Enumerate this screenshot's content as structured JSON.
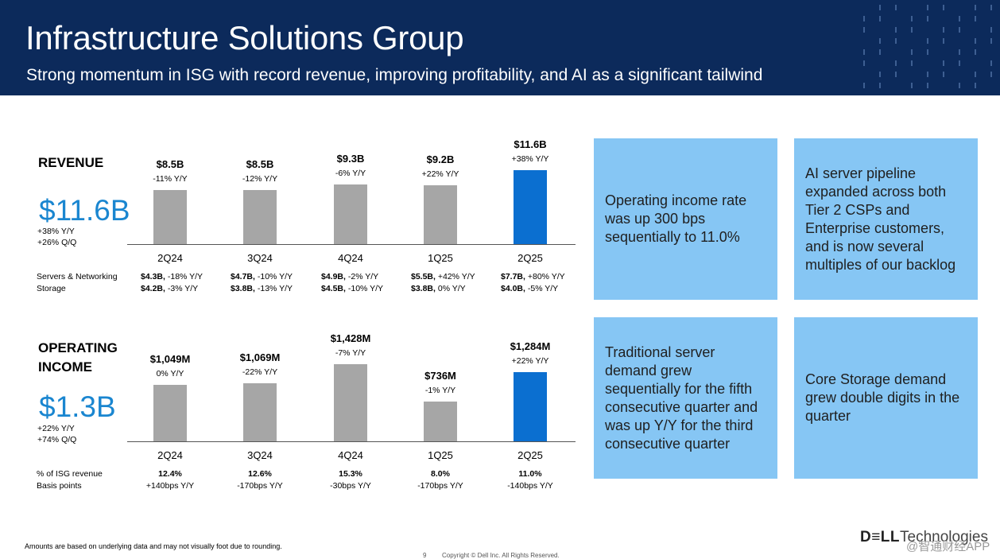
{
  "header": {
    "title": "Infrastructure Solutions Group",
    "subtitle": "Strong momentum in ISG with record revenue, improving profitability, and AI as a significant tailwind",
    "bg_color": "#0c2a5b"
  },
  "revenue": {
    "title": "REVENUE",
    "headline": "$11.6B",
    "headline_lines": [
      "+38% Y/Y",
      "+26% Q/Q"
    ],
    "bars": [
      {
        "quarter": "2Q24",
        "value_label": "$8.5B",
        "change": "-11% Y/Y"
      },
      {
        "quarter": "3Q24",
        "value_label": "$8.5B",
        "change": "-12% Y/Y"
      },
      {
        "quarter": "4Q24",
        "value_label": "$9.3B",
        "change": "-6% Y/Y"
      },
      {
        "quarter": "1Q25",
        "value_label": "$9.2B",
        "change": "+22% Y/Y"
      },
      {
        "quarter": "2Q25",
        "value_label": "$11.6B",
        "change": "+38% Y/Y"
      }
    ],
    "rows": [
      {
        "label": "Servers & Networking",
        "cells": [
          {
            "value": "$4.3B,",
            "change": "-18% Y/Y"
          },
          {
            "value": "$4.7B,",
            "change": "-10% Y/Y"
          },
          {
            "value": "$4.9B,",
            "change": "-2% Y/Y"
          },
          {
            "value": "$5.5B,",
            "change": "+42% Y/Y"
          },
          {
            "value": "$7.7B,",
            "change": "+80% Y/Y"
          }
        ]
      },
      {
        "label": "Storage",
        "cells": [
          {
            "value": "$4.2B,",
            "change": "-3% Y/Y"
          },
          {
            "value": "$3.8B,",
            "change": "-13% Y/Y"
          },
          {
            "value": "$4.5B,",
            "change": "-10% Y/Y"
          },
          {
            "value": "$3.8B,",
            "change": "0% Y/Y"
          },
          {
            "value": "$4.0B,",
            "change": "-5% Y/Y"
          }
        ]
      }
    ]
  },
  "operating": {
    "title_lines": [
      "OPERATING",
      "INCOME"
    ],
    "headline": "$1.3B",
    "headline_lines": [
      "+22% Y/Y",
      "+74% Q/Q"
    ],
    "bars": [
      {
        "quarter": "2Q24",
        "value_label": "$1,049M",
        "change": "0% Y/Y"
      },
      {
        "quarter": "3Q24",
        "value_label": "$1,069M",
        "change": "-22% Y/Y"
      },
      {
        "quarter": "4Q24",
        "value_label": "$1,428M",
        "change": "-7% Y/Y"
      },
      {
        "quarter": "1Q25",
        "value_label": "$736M",
        "change": "-1% Y/Y"
      },
      {
        "quarter": "2Q25",
        "value_label": "$1,284M",
        "change": "+22% Y/Y"
      }
    ],
    "rows": [
      {
        "label": "% of ISG revenue",
        "cells": [
          "12.4%",
          "12.6%",
          "15.3%",
          "8.0%",
          "11.0%"
        ]
      },
      {
        "label": "Basis points",
        "cells": [
          "+140bps Y/Y",
          "-170bps Y/Y",
          "-30bps Y/Y",
          "-170bps Y/Y",
          "-140bps Y/Y"
        ]
      }
    ]
  },
  "chart_data": [
    {
      "type": "bar",
      "title": "REVENUE",
      "categories": [
        "2Q24",
        "3Q24",
        "4Q24",
        "1Q25",
        "2Q25"
      ],
      "values": [
        8.5,
        8.5,
        9.3,
        9.2,
        11.6
      ],
      "unit": "$B",
      "colors": [
        "#a6a6a6",
        "#a6a6a6",
        "#a6a6a6",
        "#a6a6a6",
        "#0b6fd0"
      ]
    },
    {
      "type": "bar",
      "title": "OPERATING INCOME",
      "categories": [
        "2Q24",
        "3Q24",
        "4Q24",
        "1Q25",
        "2Q25"
      ],
      "values": [
        1049,
        1069,
        1428,
        736,
        1284
      ],
      "unit": "$M",
      "colors": [
        "#a6a6a6",
        "#a6a6a6",
        "#a6a6a6",
        "#a6a6a6",
        "#0b6fd0"
      ]
    }
  ],
  "cards": [
    "Operating income rate was up 300 bps sequentially to 11.0%",
    "AI server pipeline expanded across both Tier 2 CSPs and Enterprise customers, and is now several multiples of our backlog",
    "Traditional server demand grew sequentially for the fifth consecutive quarter and was up Y/Y for the third consecutive quarter",
    "Core Storage demand grew double digits in the quarter"
  ],
  "card_color": "#86c6f4",
  "footer": {
    "note": "Amounts are based on underlying data and may not visually foot due to rounding.",
    "page": "9",
    "copyright": "Copyright © Dell Inc. All Rights Reserved.",
    "logo_bold": "D≡LL",
    "logo_rest": "Technologies",
    "watermark": "@智通财经APP"
  }
}
